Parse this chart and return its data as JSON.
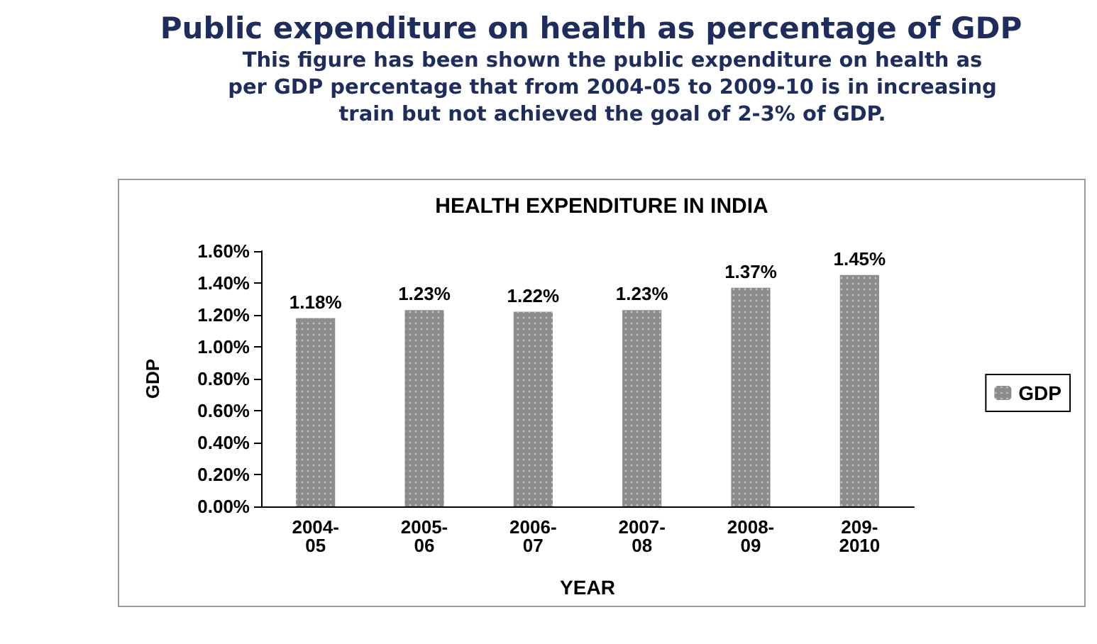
{
  "chart_data": {
    "type": "bar",
    "title": "HEALTH EXPENDITURE IN INDIA",
    "annotations": [
      "Public expenditure on health as percentage of GDP",
      "This figure has been shown the public expenditure on health as per GDP percentage that from 2004-05 to 2009-10 is in increasing train but not achieved the goal of 2-3% of GDP."
    ],
    "categories": [
      "2004-05",
      "2005-06",
      "2006-07",
      "2007-08",
      "2008-09",
      "209-2010"
    ],
    "series": [
      {
        "name": "GDP",
        "color": "#8c8c8c",
        "values": [
          1.18,
          1.23,
          1.22,
          1.23,
          1.37,
          1.45
        ],
        "value_labels": [
          "1.18%",
          "1.23%",
          "1.22%",
          "1.23%",
          "1.37%",
          "1.45%"
        ]
      }
    ],
    "xlabel": "YEAR",
    "ylabel": "GDP",
    "ylim": [
      0,
      1.6
    ],
    "yticks": [
      {
        "value": 0,
        "label": "0.00%"
      },
      {
        "value": 0.2,
        "label": "0.20%"
      },
      {
        "value": 0.4,
        "label": "0.40%"
      },
      {
        "value": 0.6,
        "label": "0.60%"
      },
      {
        "value": 0.8,
        "label": "0.80%"
      },
      {
        "value": 1,
        "label": "1.00%"
      },
      {
        "value": 1.2,
        "label": "1.20%"
      },
      {
        "value": 1.4,
        "label": "1.40%"
      },
      {
        "value": 1.6,
        "label": "1.60%"
      }
    ],
    "legend": "right",
    "grid": false
  }
}
